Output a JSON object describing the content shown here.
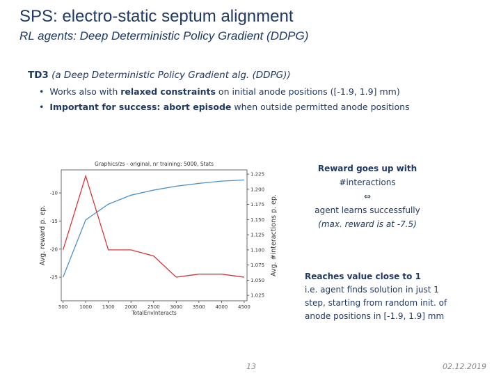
{
  "header": {
    "title": "SPS: electro-static septum alignment",
    "subtitle": "RL agents: Deep Deterministic Policy Gradient (DDPG)"
  },
  "body": {
    "heading": {
      "bold": "TD3",
      "rest": " (a Deep Deterministic Policy Gradient alg. (DDPG))"
    },
    "bullets": [
      {
        "segments": [
          "Works also with ",
          "relaxed constraints",
          " on initial anode positions ([-1.9, 1.9] mm)"
        ],
        "bold": [
          1
        ]
      },
      {
        "segments": [
          "Important for success: ",
          "abort episode",
          " when outside permitted anode positions"
        ],
        "bold": [
          0,
          1
        ]
      }
    ]
  },
  "chart_data": {
    "type": "line",
    "title": "Graphics/zs - original, nr training: 5000, Stats",
    "x_label": "TotalEnvInteracts",
    "y_label": "Avg. reward p. ep.",
    "y2_label": "Avg. #interactions p. ep.",
    "x": [
      500,
      1000,
      1500,
      2000,
      2500,
      3000,
      3500,
      4000,
      4500
    ],
    "series": [
      {
        "name": "Avg. reward p. ep.",
        "color": "#4a90c8",
        "values": [
          -25,
          -14.8,
          -12,
          -10.4,
          -9.5,
          -8.8,
          -8.3,
          -7.9,
          -7.7
        ]
      },
      {
        "name": "Avg. #interactions p. ep.",
        "color": "#d9343a",
        "axis": "y2",
        "values": [
          1.1,
          1.222,
          1.1,
          1.1,
          1.09,
          1.055,
          1.06,
          1.06,
          1.055
        ]
      }
    ],
    "xlim": [
      460,
      4563
    ],
    "xticks": [
      500,
      1000,
      1500,
      2000,
      2500,
      3000,
      3500,
      4000,
      4500
    ],
    "ylim": [
      -29.2,
      -5.9
    ],
    "yticks": [
      -25,
      -20,
      -15,
      -10
    ],
    "y2lim": [
      1.016,
      1.232
    ],
    "y2ticks": [
      1.025,
      {
        "value": 1.05,
        "label": "1.050"
      },
      1.075,
      {
        "value": 1.1,
        "label": "1.100"
      },
      1.125,
      {
        "value": 1.15,
        "label": "1.150"
      },
      1.175,
      {
        "value": 1.2,
        "label": "1.200"
      },
      1.225
    ]
  },
  "notes": {
    "reward": [
      "Reward goes up with",
      "#interactions",
      "⇔",
      "agent learns successfully",
      "(max. reward is at -7.5)"
    ],
    "reaches": [
      "Reaches value close to 1",
      "i.e. agent finds solution in just 1",
      "step, starting from random init. of",
      "anode positions in [-1.9, 1.9] mm"
    ]
  },
  "footer": {
    "page": "13",
    "date": "02.12.2019"
  }
}
